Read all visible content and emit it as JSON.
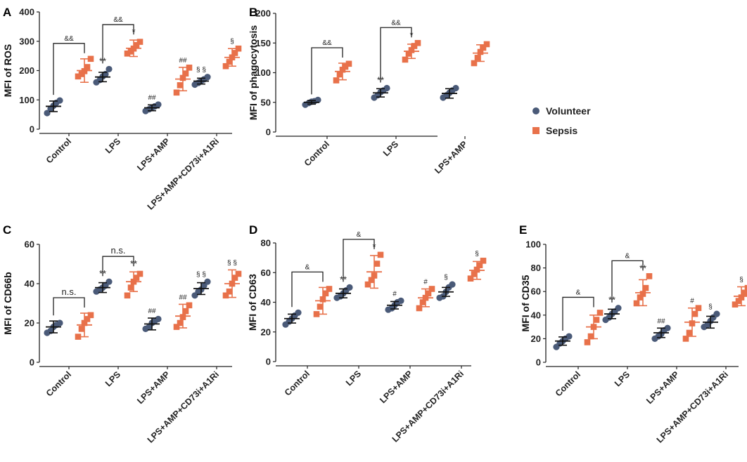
{
  "figure": {
    "legend": {
      "items": [
        {
          "label": "Volunteer",
          "color": "#4a5a78",
          "marker": "circle"
        },
        {
          "label": "Sepsis",
          "color": "#e8714a",
          "marker": "square"
        }
      ]
    }
  },
  "chart_data": [
    {
      "panel": "A",
      "type": "scatter",
      "ylabel": "MFI of ROS",
      "ylim": [
        0,
        400
      ],
      "yticks": [
        0,
        100,
        200,
        300,
        400
      ],
      "categories": [
        "Control",
        "LPS",
        "LPS+AMP",
        "LPS+AMP+CD73i+A1Ri"
      ],
      "series": [
        {
          "name": "Volunteer",
          "points": [
            [
              55,
              70,
              80,
              90,
              98
            ],
            [
              160,
              168,
              180,
              188,
              205
            ],
            [
              62,
              68,
              73,
              78,
              84
            ],
            [
              152,
              158,
              165,
              170,
              178
            ]
          ],
          "mean": [
            78,
            178,
            73,
            164
          ],
          "sd": [
            18,
            16,
            10,
            10
          ]
        },
        {
          "name": "Sepsis",
          "points": [
            [
              180,
              188,
              198,
              212,
              240
            ],
            [
              258,
              265,
              275,
              287,
              298
            ],
            [
              125,
              150,
              175,
              190,
              210
            ],
            [
              215,
              230,
              245,
              260,
              275
            ]
          ],
          "mean": [
            200,
            276,
            171,
            245
          ],
          "sd": [
            40,
            28,
            40,
            30
          ]
        }
      ],
      "annotations": [
        {
          "cat": 0,
          "series": 1,
          "text": "&&",
          "bracket": true
        },
        {
          "cat": 1,
          "series": 1,
          "text": "&&",
          "bracket": true
        },
        {
          "cat": 1,
          "series": 0,
          "text": "**"
        },
        {
          "cat": 1,
          "series": 1,
          "text": "*"
        },
        {
          "cat": 2,
          "series": 0,
          "text": "##"
        },
        {
          "cat": 2,
          "series": 1,
          "text": "##"
        },
        {
          "cat": 3,
          "series": 0,
          "text": "§ §"
        },
        {
          "cat": 3,
          "series": 1,
          "text": "§"
        }
      ]
    },
    {
      "panel": "B",
      "type": "scatter",
      "ylabel": "MFI of phagocytosis",
      "ylim": [
        0,
        200
      ],
      "yticks": [
        0,
        50,
        100,
        150,
        200
      ],
      "categories": [
        "Control",
        "LPS",
        "LPS+AMP"
      ],
      "series": [
        {
          "name": "Volunteer",
          "points": [
            [
              46,
              49,
              51,
              52,
              54
            ],
            [
              58,
              62,
              67,
              70,
              74
            ],
            [
              58,
              62,
              66,
              70,
              74
            ]
          ],
          "mean": [
            50,
            66,
            65
          ],
          "sd": [
            3,
            7,
            8
          ]
        },
        {
          "name": "Sepsis",
          "points": [
            [
              87,
              97,
              105,
              110,
              115
            ],
            [
              122,
              132,
              138,
              145,
              150
            ],
            [
              116,
              125,
              135,
              142,
              148
            ]
          ],
          "mean": [
            102,
            136,
            133
          ],
          "sd": [
            14,
            12,
            14
          ]
        }
      ],
      "annotations": [
        {
          "cat": 0,
          "series": 1,
          "text": "&&",
          "bracket": true
        },
        {
          "cat": 1,
          "series": 1,
          "text": "&&",
          "bracket": true
        },
        {
          "cat": 1,
          "series": 0,
          "text": "**"
        },
        {
          "cat": 1,
          "series": 1,
          "text": "*"
        }
      ]
    },
    {
      "panel": "C",
      "type": "scatter",
      "ylabel": "MFI of CD66b",
      "ylim": [
        0,
        60
      ],
      "yticks": [
        0,
        20,
        40,
        60
      ],
      "categories": [
        "Control",
        "LPS",
        "LPS+AMP",
        "LPS+AMP+CD73i+A1Ri"
      ],
      "series": [
        {
          "name": "Volunteer",
          "points": [
            [
              15,
              16,
              18,
              19,
              20
            ],
            [
              36,
              37,
              38,
              39,
              41
            ],
            [
              17,
              18,
              20,
              21,
              22
            ],
            [
              34,
              36,
              37,
              39,
              41
            ]
          ],
          "mean": [
            18,
            38,
            19.5,
            37.5
          ],
          "sd": [
            3,
            2.5,
            3,
            3
          ]
        },
        {
          "name": "Sepsis",
          "points": [
            [
              13,
              17,
              20,
              22,
              24
            ],
            [
              34,
              38,
              41,
              43,
              45
            ],
            [
              18,
              20,
              23,
              26,
              29
            ],
            [
              34,
              36,
              40,
              43,
              45
            ]
          ],
          "mean": [
            19,
            41,
            23.5,
            40
          ],
          "sd": [
            6,
            5,
            6,
            7
          ]
        }
      ],
      "annotations": [
        {
          "cat": 0,
          "series": 1,
          "text": "n.s.",
          "bracket": true
        },
        {
          "cat": 1,
          "series": 1,
          "text": "n.s.",
          "bracket": true
        },
        {
          "cat": 1,
          "series": 0,
          "text": "**"
        },
        {
          "cat": 1,
          "series": 1,
          "text": "**"
        },
        {
          "cat": 2,
          "series": 0,
          "text": "##"
        },
        {
          "cat": 2,
          "series": 1,
          "text": "##"
        },
        {
          "cat": 3,
          "series": 0,
          "text": "§ §"
        },
        {
          "cat": 3,
          "series": 1,
          "text": "§ §"
        }
      ]
    },
    {
      "panel": "D",
      "type": "scatter",
      "ylabel": "MFI of CD63",
      "ylim": [
        0,
        80
      ],
      "yticks": [
        0,
        20,
        40,
        60,
        80
      ],
      "categories": [
        "Control",
        "LPS",
        "LPS+AMP",
        "LPS+AMP+CD73i+A1Ri"
      ],
      "series": [
        {
          "name": "Volunteer",
          "points": [
            [
              25,
              27,
              29,
              31,
              33
            ],
            [
              43,
              44,
              46,
              48,
              50
            ],
            [
              35,
              36,
              38,
              40,
              41
            ],
            [
              43,
              44,
              47,
              50,
              52
            ]
          ],
          "mean": [
            29,
            46,
            38,
            47
          ],
          "sd": [
            3,
            3,
            2.5,
            3
          ]
        },
        {
          "name": "Sepsis",
          "points": [
            [
              32,
              37,
              42,
              46,
              49
            ],
            [
              52,
              55,
              58,
              66,
              72
            ],
            [
              36,
              40,
              43,
              46,
              49
            ],
            [
              56,
              59,
              62,
              65,
              68
            ]
          ],
          "mean": [
            41,
            60.5,
            43,
            61.5
          ],
          "sd": [
            9,
            11,
            6,
            6
          ]
        }
      ],
      "annotations": [
        {
          "cat": 0,
          "series": 1,
          "text": "&",
          "bracket": true
        },
        {
          "cat": 1,
          "series": 1,
          "text": "&",
          "bracket": true
        },
        {
          "cat": 1,
          "series": 0,
          "text": "**"
        },
        {
          "cat": 1,
          "series": 1,
          "text": "*"
        },
        {
          "cat": 2,
          "series": 0,
          "text": "#"
        },
        {
          "cat": 2,
          "series": 1,
          "text": "#"
        },
        {
          "cat": 3,
          "series": 0,
          "text": "§"
        },
        {
          "cat": 3,
          "series": 1,
          "text": "§"
        }
      ]
    },
    {
      "panel": "E",
      "type": "scatter",
      "ylabel": "MFI of CD35",
      "ylim": [
        0,
        100
      ],
      "yticks": [
        0,
        20,
        40,
        60,
        80,
        100
      ],
      "categories": [
        "Control",
        "LPS",
        "LPS+AMP",
        "LPS+AMP+CD73i+A1Ri"
      ],
      "series": [
        {
          "name": "Volunteer",
          "points": [
            [
              13,
              16,
              18,
              20,
              22
            ],
            [
              36,
              38,
              41,
              43,
              46
            ],
            [
              20,
              22,
              24,
              27,
              29
            ],
            [
              30,
              32,
              35,
              38,
              41
            ]
          ],
          "mean": [
            18,
            41,
            25,
            34
          ],
          "sd": [
            3.5,
            4,
            4,
            5
          ]
        },
        {
          "name": "Sepsis",
          "points": [
            [
              17,
              22,
              30,
              36,
              42
            ],
            [
              50,
              55,
              58,
              63,
              73
            ],
            [
              20,
              25,
              33,
              41,
              46
            ],
            [
              49,
              52,
              55,
              59,
              63
            ]
          ],
          "mean": [
            30,
            59,
            34,
            56
          ],
          "sd": [
            10,
            11,
            12,
            8
          ]
        }
      ],
      "annotations": [
        {
          "cat": 0,
          "series": 1,
          "text": "&",
          "bracket": true
        },
        {
          "cat": 1,
          "series": 1,
          "text": "&",
          "bracket": true
        },
        {
          "cat": 1,
          "series": 0,
          "text": "**"
        },
        {
          "cat": 1,
          "series": 1,
          "text": "**"
        },
        {
          "cat": 2,
          "series": 0,
          "text": "##"
        },
        {
          "cat": 2,
          "series": 1,
          "text": "#"
        },
        {
          "cat": 3,
          "series": 0,
          "text": "§"
        },
        {
          "cat": 3,
          "series": 1,
          "text": "§"
        }
      ]
    }
  ]
}
